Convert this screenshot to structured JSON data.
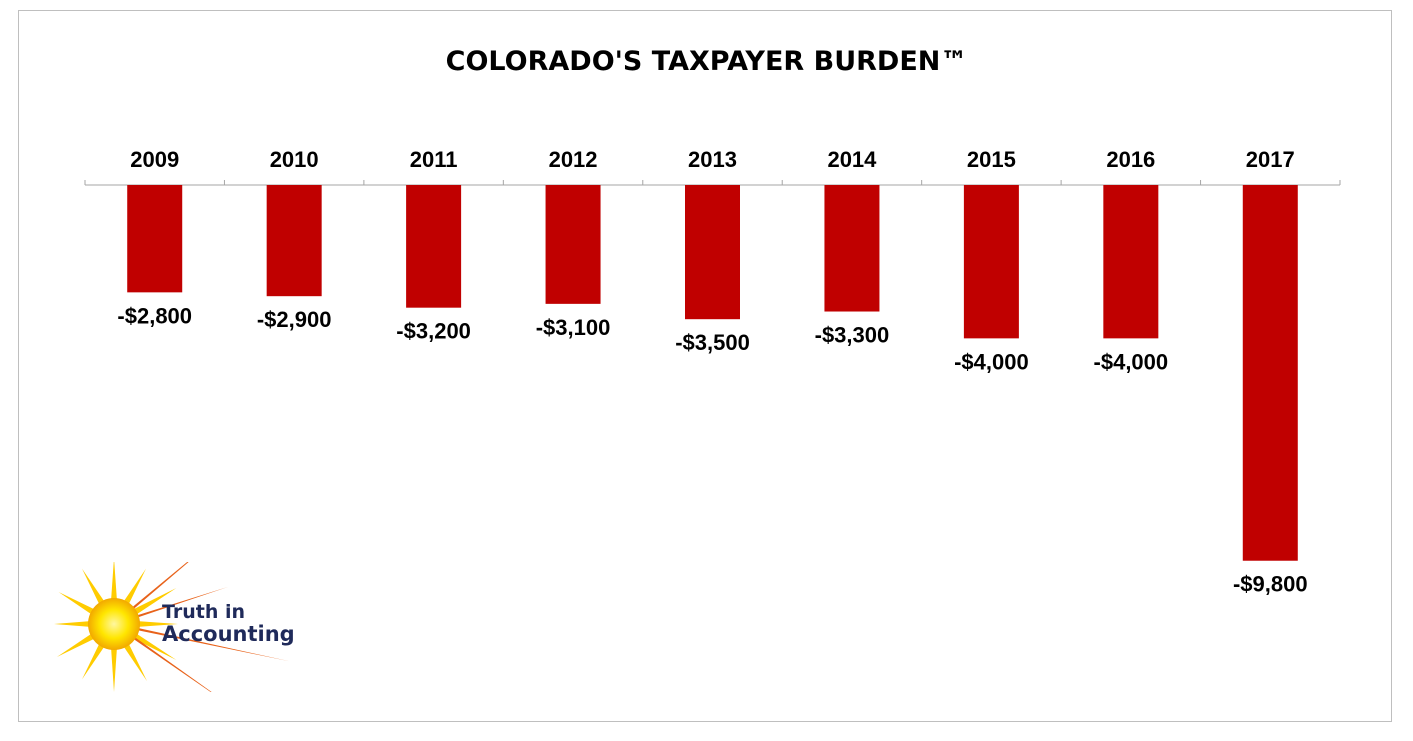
{
  "chart_data": {
    "type": "bar",
    "title": "COLORADO'S TAXPAYER BURDEN™",
    "categories": [
      "2009",
      "2010",
      "2011",
      "2012",
      "2013",
      "2014",
      "2015",
      "2016",
      "2017"
    ],
    "values": [
      -2800,
      -2900,
      -3200,
      -3100,
      -3500,
      -3300,
      -4000,
      -4000,
      -9800
    ],
    "data_labels": [
      "-$2,800",
      "-$2,900",
      "-$3,200",
      "-$3,100",
      "-$3,500",
      "-$3,300",
      "-$4,000",
      "-$4,000",
      "-$9,800"
    ],
    "xlabel": "",
    "ylabel": "",
    "ylim": [
      -10000,
      0
    ],
    "bar_color": "#c00000",
    "axis_color": "#a6a6a6",
    "grid": false,
    "category_axis_position": "top"
  },
  "logo": {
    "line1": "Truth in",
    "line2": "Accounting",
    "icon": "sun-icon"
  }
}
